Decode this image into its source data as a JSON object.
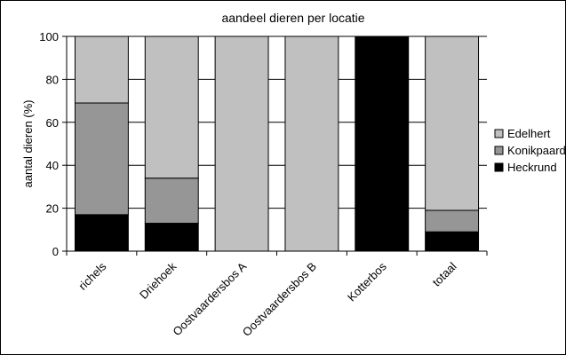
{
  "chart_data": {
    "type": "bar",
    "stacked": true,
    "title": "aandeel dieren per locatie",
    "xlabel": "",
    "ylabel": "aantal dieren (%)",
    "ylim": [
      0,
      100
    ],
    "yticks": [
      0,
      20,
      40,
      60,
      80,
      100
    ],
    "grid": "horizontal",
    "legend_position": "right",
    "categories": [
      "richels",
      "Driehoek",
      "Oostvaardersbos A",
      "Oostvaardersbos B",
      "Kotterbos",
      "totaal"
    ],
    "series": [
      {
        "name": "Heckrund",
        "color": "#000000",
        "values": [
          17,
          13,
          0,
          0,
          100,
          9
        ]
      },
      {
        "name": "Konikpaard",
        "color": "#969696",
        "values": [
          52,
          21,
          0,
          0,
          0,
          10
        ]
      },
      {
        "name": "Edelhert",
        "color": "#c0c0c0",
        "values": [
          31,
          66,
          100,
          100,
          0,
          81
        ]
      }
    ],
    "legend_order": [
      "Edelhert",
      "Konikpaard",
      "Heckrund"
    ]
  }
}
